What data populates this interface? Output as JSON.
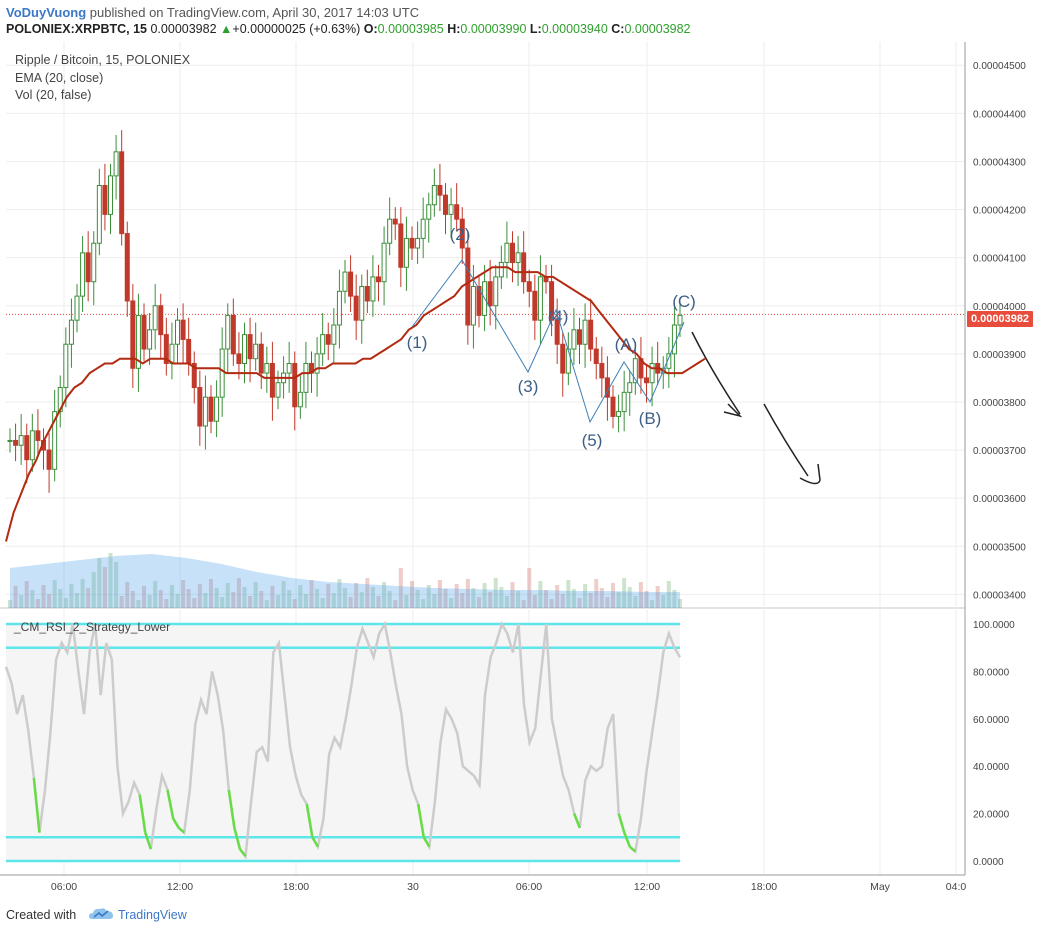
{
  "header": {
    "author": "VoDuyVuong",
    "published": "published on TradingView.com, April 30, 2017 14:03 UTC",
    "symbol": "POLONIEX:XRPBTC, 15",
    "last": "0.00003982",
    "change": "+0.00000025 (+0.63%)",
    "o_label": "O:",
    "o_value": "0.00003985",
    "h_label": "H:",
    "h_value": "0.00003990",
    "l_label": "L:",
    "l_value": "0.00003940",
    "c_label": "C:",
    "c_value": "0.00003982"
  },
  "legend": {
    "title": "Ripple / Bitcoin, 15, POLONIEX",
    "ema": "EMA (20, close)",
    "vol": "Vol (20, false)"
  },
  "price_badge": "0.00003982",
  "rsi_title": "_CM_RSI_2_Strategy_Lower",
  "footer": {
    "created_with": "Created with",
    "brand": "TradingView"
  },
  "colors": {
    "up": "#3a8e3a",
    "down": "#c0392b",
    "ema": "#b22a10",
    "rsi_line": "#cccccc",
    "rsi_low": "#66dd44",
    "rsi_band": "#5ce6ea",
    "badge": "#e74c3c"
  },
  "chart_data": {
    "type": "candlestick",
    "title": "Ripple / Bitcoin, 15, POLONIEX",
    "y_ticks": [
      "0.00004500",
      "0.00004400",
      "0.00004300",
      "0.00004200",
      "0.00004100",
      "0.00004000",
      "0.00003900",
      "0.00003800",
      "0.00003700",
      "0.00003600",
      "0.00003500",
      "0.00003400"
    ],
    "x_ticks": [
      "06:00",
      "12:00",
      "18:00",
      "30",
      "06:00",
      "12:00",
      "18:00",
      "May",
      "04:0"
    ],
    "price_ylim": [
      3.38e-05,
      4.54e-05
    ],
    "last_price": 3.982e-05,
    "wave_labels": [
      "(1)",
      "(2)",
      "(3)",
      "(4)",
      "(5)",
      "(A)",
      "(B)",
      "(C)"
    ],
    "close": [
      3.72e-05,
      3.71e-05,
      3.73e-05,
      3.68e-05,
      3.74e-05,
      3.72e-05,
      3.7e-05,
      3.66e-05,
      3.78e-05,
      3.83e-05,
      3.92e-05,
      3.97e-05,
      4.02e-05,
      4.11e-05,
      4.05e-05,
      4.13e-05,
      4.25e-05,
      4.19e-05,
      4.27e-05,
      4.32e-05,
      4.15e-05,
      4.01e-05,
      3.87e-05,
      3.98e-05,
      3.91e-05,
      3.95e-05,
      4e-05,
      3.94e-05,
      3.88e-05,
      3.92e-05,
      3.97e-05,
      3.93e-05,
      3.88e-05,
      3.83e-05,
      3.75e-05,
      3.81e-05,
      3.76e-05,
      3.81e-05,
      3.91e-05,
      3.98e-05,
      3.9e-05,
      3.88e-05,
      3.94e-05,
      3.89e-05,
      3.92e-05,
      3.86e-05,
      3.88e-05,
      3.81e-05,
      3.84e-05,
      3.86e-05,
      3.88e-05,
      3.79e-05,
      3.82e-05,
      3.88e-05,
      3.86e-05,
      3.9e-05,
      3.94e-05,
      3.92e-05,
      3.96e-05,
      4.03e-05,
      4.07e-05,
      4.02e-05,
      3.97e-05,
      4.04e-05,
      4.01e-05,
      4.06e-05,
      4.05e-05,
      4.13e-05,
      4.18e-05,
      4.17e-05,
      4.08e-05,
      4.14e-05,
      4.12e-05,
      4.14e-05,
      4.18e-05,
      4.21e-05,
      4.25e-05,
      4.23e-05,
      4.19e-05,
      4.21e-05,
      4.18e-05,
      4.12e-05,
      3.96e-05,
      4.04e-05,
      3.98e-05,
      4.05e-05,
      4e-05,
      4.06e-05,
      4.09e-05,
      4.13e-05,
      4.09e-05,
      4.11e-05,
      4.05e-05,
      4.03e-05,
      3.97e-05,
      4.06e-05,
      4.05e-05,
      3.97e-05,
      3.92e-05,
      3.86e-05,
      3.91e-05,
      3.95e-05,
      3.92e-05,
      3.97e-05,
      3.91e-05,
      3.88e-05,
      3.85e-05,
      3.81e-05,
      3.77e-05,
      3.78e-05,
      3.82e-05,
      3.84e-05,
      3.89e-05,
      3.85e-05,
      3.84e-05,
      3.88e-05,
      3.86e-05,
      3.87e-05,
      3.9e-05,
      3.96e-05,
      3.98e-05
    ],
    "ema": [
      3.51e-05,
      3.57e-05,
      3.61e-05,
      3.65e-05,
      3.68e-05,
      3.72e-05,
      3.75e-05,
      3.78e-05,
      3.81e-05,
      3.83e-05,
      3.84e-05,
      3.86e-05,
      3.87e-05,
      3.88e-05,
      3.88e-05,
      3.89e-05,
      3.89e-05,
      3.89e-05,
      3.88e-05,
      3.89e-05,
      3.89e-05,
      3.89e-05,
      3.88e-05,
      3.88e-05,
      3.88e-05,
      3.87e-05,
      3.87e-05,
      3.87e-05,
      3.87e-05,
      3.86e-05,
      3.86e-05,
      3.86e-05,
      3.86e-05,
      3.86e-05,
      3.85e-05,
      3.85e-05,
      3.85e-05,
      3.85e-05,
      3.85e-05,
      3.86e-05,
      3.86e-05,
      3.87e-05,
      3.87e-05,
      3.88e-05,
      3.88e-05,
      3.88e-05,
      3.88e-05,
      3.89e-05,
      3.89e-05,
      3.9e-05,
      3.91e-05,
      3.92e-05,
      3.93e-05,
      3.95e-05,
      3.96e-05,
      3.98e-05,
      3.99e-05,
      4e-05,
      4.01e-05,
      4.02e-05,
      4.04e-05,
      4.05e-05,
      4.06e-05,
      4.07e-05,
      4.08e-05,
      4.08e-05,
      4.08e-05,
      4.07e-05,
      4.07e-05,
      4.07e-05,
      4.07e-05,
      4.06e-05,
      4.06e-05,
      4.05e-05,
      4.04e-05,
      4.03e-05,
      4.02e-05,
      4.01e-05,
      3.99e-05,
      3.97e-05,
      3.95e-05,
      3.93e-05,
      3.91e-05,
      3.9e-05,
      3.88e-05,
      3.87e-05,
      3.87e-05,
      3.86e-05,
      3.86e-05,
      3.86e-05,
      3.87e-05,
      3.88e-05,
      3.89e-05
    ],
    "rsi_levels": {
      "upper_outer": 100,
      "upper": 90,
      "lower": 10,
      "lower_outer": 0
    },
    "rsi_ticks": [
      "100.0000",
      "80.0000",
      "60.0000",
      "40.0000",
      "20.0000",
      "0.0000"
    ],
    "rsi": [
      82,
      75,
      62,
      70,
      55,
      35,
      12,
      30,
      55,
      85,
      92,
      88,
      100,
      80,
      62,
      88,
      100,
      70,
      92,
      85,
      40,
      20,
      25,
      33,
      28,
      12,
      5,
      22,
      36,
      30,
      18,
      14,
      12,
      30,
      58,
      68,
      62,
      80,
      70,
      55,
      30,
      14,
      5,
      2,
      25,
      46,
      48,
      42,
      88,
      92,
      70,
      48,
      36,
      28,
      24,
      10,
      6,
      18,
      45,
      52,
      48,
      60,
      74,
      90,
      98,
      92,
      86,
      96,
      100,
      88,
      74,
      62,
      40,
      30,
      24,
      10,
      6,
      25,
      50,
      64,
      60,
      54,
      40,
      38,
      36,
      32,
      70,
      86,
      92,
      100,
      96,
      88,
      100,
      66,
      50,
      56,
      78,
      100,
      60,
      48,
      36,
      30,
      20,
      14,
      34,
      40,
      38,
      40,
      56,
      62,
      20,
      12,
      6,
      4,
      18,
      38,
      54,
      70,
      88,
      96,
      90,
      86
    ],
    "rsi_ylim": [
      0,
      100
    ]
  }
}
